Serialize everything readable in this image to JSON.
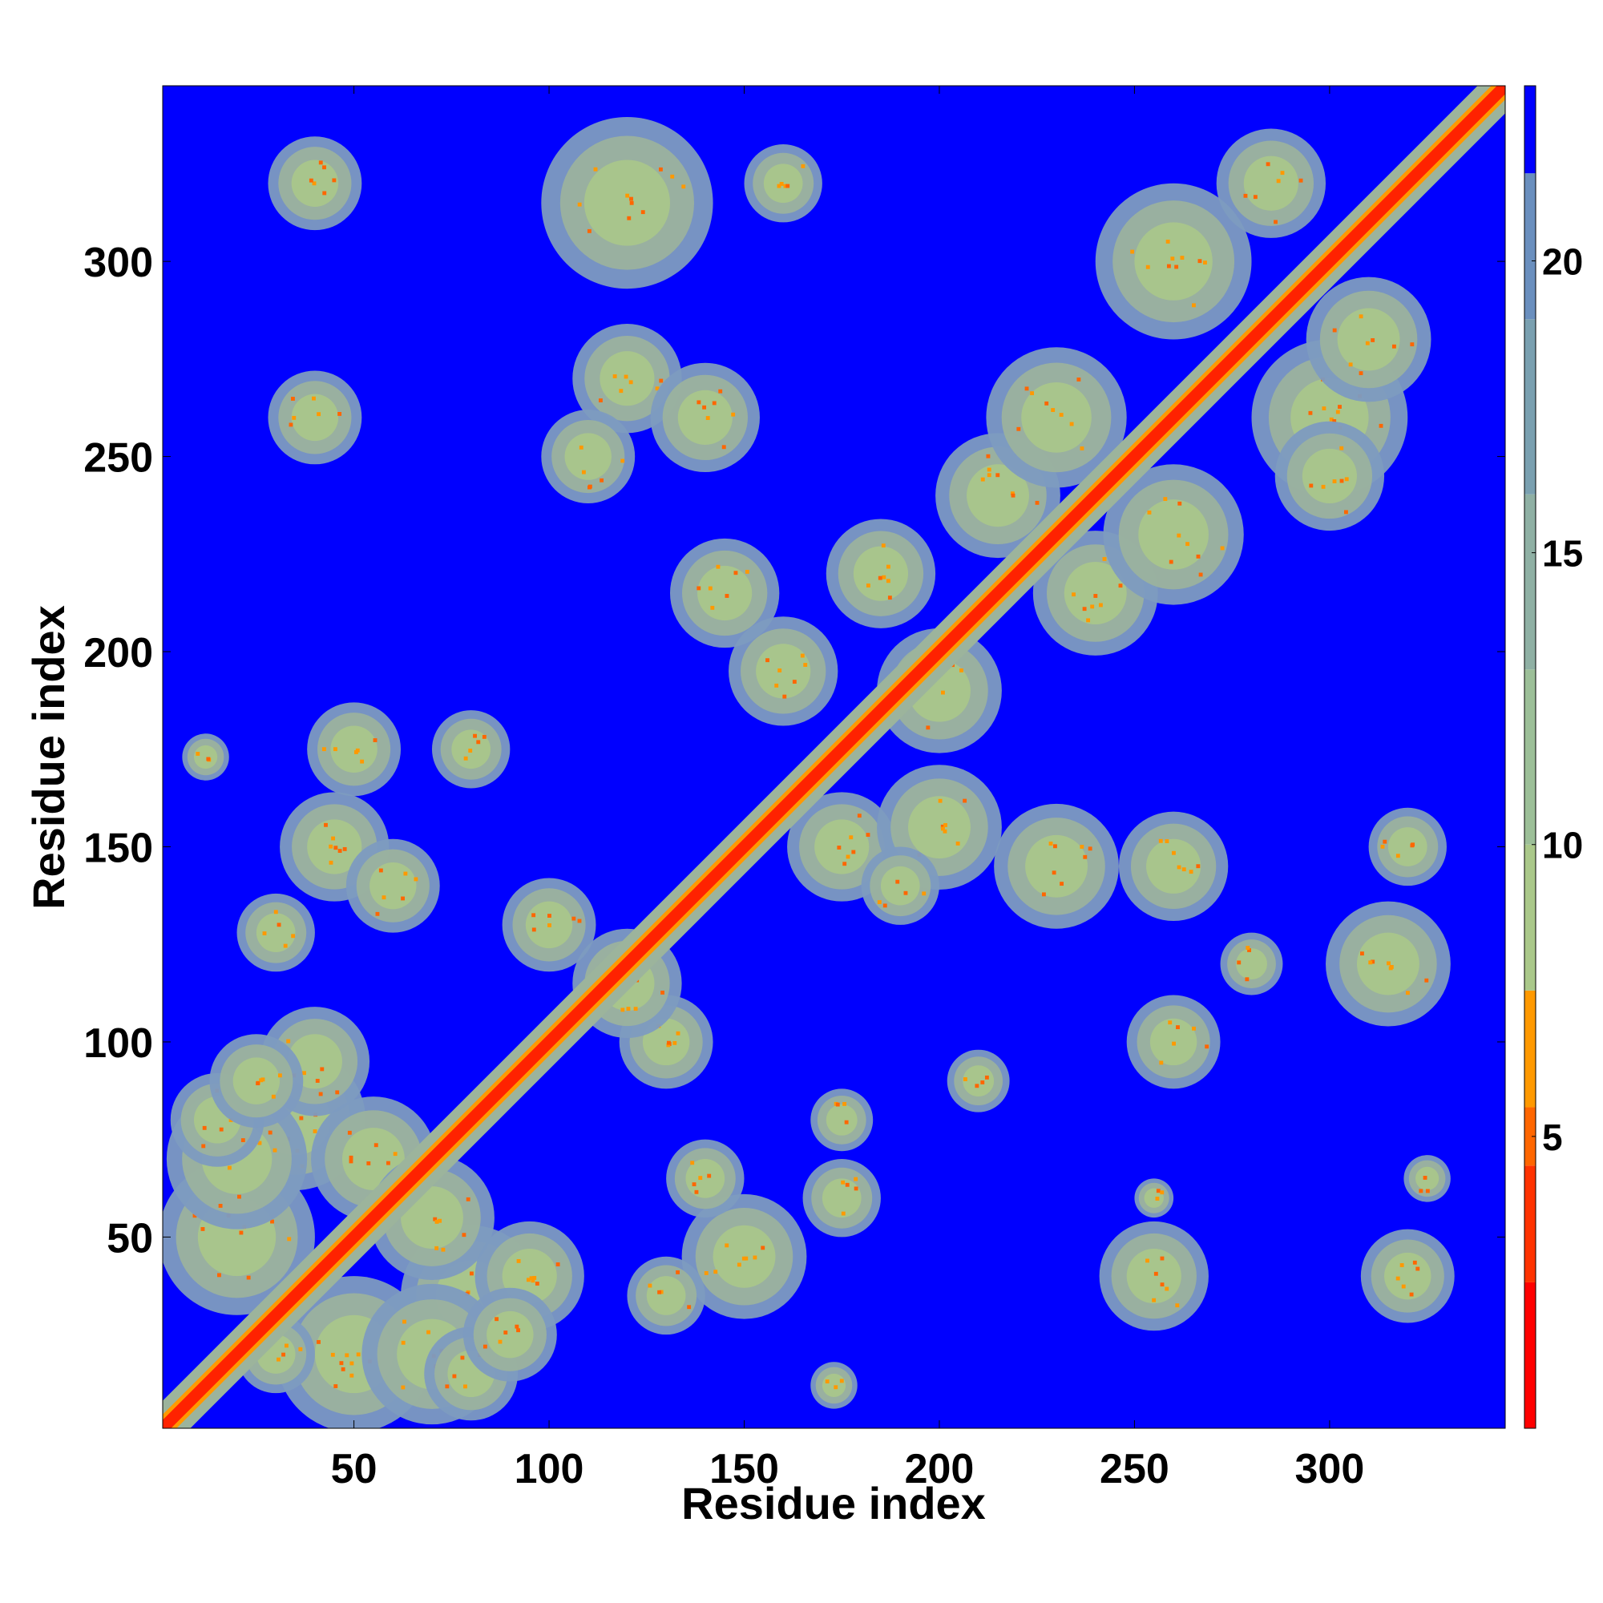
{
  "chart_data": {
    "type": "heatmap",
    "title": "",
    "xlabel": "Residue index",
    "ylabel": "Residue index",
    "xlim": [
      1,
      345
    ],
    "ylim": [
      1,
      345
    ],
    "x_ticks": [
      50,
      100,
      150,
      200,
      250,
      300
    ],
    "y_ticks": [
      50,
      100,
      150,
      200,
      250,
      300
    ],
    "colorbar": {
      "range": [
        0,
        23
      ],
      "ticks": [
        5,
        10,
        15,
        20
      ],
      "colors": [
        "#ff0000",
        "#ff3300",
        "#ff6600",
        "#ff9900",
        "#aac88a",
        "#9cbf98",
        "#8fb0a4",
        "#7aa0b0",
        "#6a8fbe",
        "#0000ff"
      ]
    },
    "diagonal_band": {
      "width": 3,
      "color": "#ff2200"
    },
    "background_color": "#0000ff",
    "contact_blobs": [
      {
        "x": 20,
        "y": 50,
        "r": 20
      },
      {
        "x": 50,
        "y": 20,
        "r": 20
      },
      {
        "x": 35,
        "y": 80,
        "r": 18
      },
      {
        "x": 80,
        "y": 35,
        "r": 18
      },
      {
        "x": 70,
        "y": 20,
        "r": 18
      },
      {
        "x": 20,
        "y": 70,
        "r": 18
      },
      {
        "x": 55,
        "y": 70,
        "r": 16
      },
      {
        "x": 70,
        "y": 55,
        "r": 16
      },
      {
        "x": 40,
        "y": 95,
        "r": 14
      },
      {
        "x": 95,
        "y": 40,
        "r": 14
      },
      {
        "x": 80,
        "y": 15,
        "r": 12
      },
      {
        "x": 15,
        "y": 80,
        "r": 12
      },
      {
        "x": 90,
        "y": 25,
        "r": 12
      },
      {
        "x": 25,
        "y": 90,
        "r": 12
      },
      {
        "x": 40,
        "y": 320,
        "r": 12
      },
      {
        "x": 120,
        "y": 315,
        "r": 22
      },
      {
        "x": 160,
        "y": 320,
        "r": 10
      },
      {
        "x": 40,
        "y": 260,
        "r": 12
      },
      {
        "x": 120,
        "y": 270,
        "r": 14
      },
      {
        "x": 110,
        "y": 250,
        "r": 12
      },
      {
        "x": 140,
        "y": 260,
        "r": 14
      },
      {
        "x": 145,
        "y": 215,
        "r": 14
      },
      {
        "x": 160,
        "y": 195,
        "r": 14
      },
      {
        "x": 185,
        "y": 220,
        "r": 14
      },
      {
        "x": 200,
        "y": 190,
        "r": 16
      },
      {
        "x": 215,
        "y": 240,
        "r": 16
      },
      {
        "x": 240,
        "y": 215,
        "r": 16
      },
      {
        "x": 230,
        "y": 260,
        "r": 18
      },
      {
        "x": 260,
        "y": 230,
        "r": 18
      },
      {
        "x": 260,
        "y": 300,
        "r": 20
      },
      {
        "x": 300,
        "y": 260,
        "r": 20
      },
      {
        "x": 285,
        "y": 320,
        "r": 14
      },
      {
        "x": 310,
        "y": 280,
        "r": 16
      },
      {
        "x": 300,
        "y": 245,
        "r": 14
      },
      {
        "x": 45,
        "y": 150,
        "r": 14
      },
      {
        "x": 50,
        "y": 175,
        "r": 12
      },
      {
        "x": 60,
        "y": 140,
        "r": 12
      },
      {
        "x": 30,
        "y": 128,
        "r": 10
      },
      {
        "x": 80,
        "y": 175,
        "r": 10
      },
      {
        "x": 12,
        "y": 173,
        "r": 6
      },
      {
        "x": 100,
        "y": 130,
        "r": 12
      },
      {
        "x": 130,
        "y": 100,
        "r": 12
      },
      {
        "x": 120,
        "y": 115,
        "r": 14
      },
      {
        "x": 175,
        "y": 150,
        "r": 14
      },
      {
        "x": 200,
        "y": 155,
        "r": 16
      },
      {
        "x": 230,
        "y": 145,
        "r": 16
      },
      {
        "x": 260,
        "y": 145,
        "r": 14
      },
      {
        "x": 190,
        "y": 140,
        "r": 10
      },
      {
        "x": 260,
        "y": 100,
        "r": 12
      },
      {
        "x": 280,
        "y": 120,
        "r": 8
      },
      {
        "x": 315,
        "y": 120,
        "r": 16
      },
      {
        "x": 320,
        "y": 150,
        "r": 10
      },
      {
        "x": 320,
        "y": 40,
        "r": 12
      },
      {
        "x": 255,
        "y": 40,
        "r": 14
      },
      {
        "x": 150,
        "y": 45,
        "r": 16
      },
      {
        "x": 175,
        "y": 60,
        "r": 10
      },
      {
        "x": 130,
        "y": 35,
        "r": 10
      },
      {
        "x": 175,
        "y": 80,
        "r": 8
      },
      {
        "x": 173,
        "y": 12,
        "r": 6
      },
      {
        "x": 140,
        "y": 65,
        "r": 10
      },
      {
        "x": 210,
        "y": 90,
        "r": 8
      },
      {
        "x": 255,
        "y": 60,
        "r": 5
      },
      {
        "x": 325,
        "y": 65,
        "r": 6
      },
      {
        "x": 30,
        "y": 20,
        "r": 10
      }
    ]
  }
}
